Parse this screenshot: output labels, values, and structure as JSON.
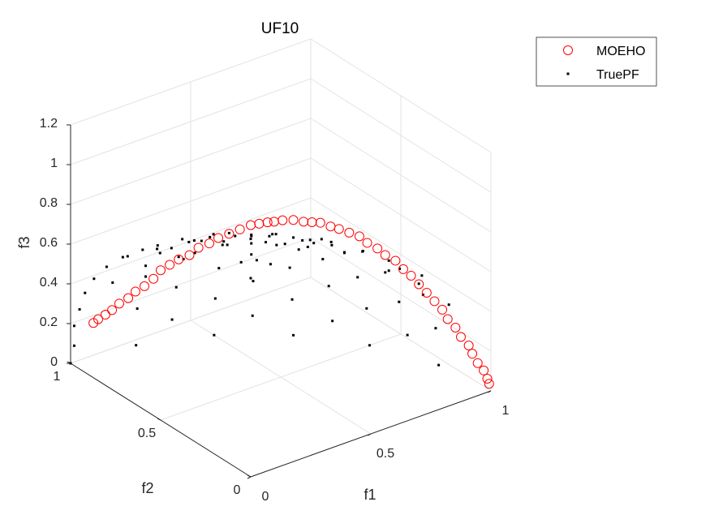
{
  "chart_data": {
    "type": "scatter",
    "title": "UF10",
    "xlabel": "f1",
    "ylabel": "f2",
    "zlabel": "f3",
    "xlim": [
      0,
      1
    ],
    "ylim": [
      0,
      1
    ],
    "zlim": [
      0,
      1.2
    ],
    "xticks": [
      "0",
      "0.5",
      "1"
    ],
    "yticks": [
      "0",
      "0.5",
      "1"
    ],
    "zticks": [
      "0",
      "0.2",
      "0.4",
      "0.6",
      "0.8",
      "1",
      "1.2"
    ],
    "grid": true,
    "legend": "top-right",
    "series": [
      {
        "name": "MOEHO",
        "marker": "circle-open",
        "color": "#ff0000",
        "points": [
          [
            0.08,
            0.98,
            0.18
          ],
          [
            0.1,
            0.98,
            0.19
          ],
          [
            0.13,
            0.98,
            0.2
          ],
          [
            0.15,
            0.97,
            0.22
          ],
          [
            0.18,
            0.97,
            0.24
          ],
          [
            0.21,
            0.96,
            0.26
          ],
          [
            0.24,
            0.96,
            0.28
          ],
          [
            0.27,
            0.95,
            0.3
          ],
          [
            0.3,
            0.94,
            0.33
          ],
          [
            0.33,
            0.94,
            0.36
          ],
          [
            0.36,
            0.93,
            0.38
          ],
          [
            0.39,
            0.92,
            0.4
          ],
          [
            0.42,
            0.9,
            0.42
          ],
          [
            0.45,
            0.89,
            0.45
          ],
          [
            0.48,
            0.87,
            0.47
          ],
          [
            0.51,
            0.86,
            0.49
          ],
          [
            0.54,
            0.84,
            0.51
          ],
          [
            0.57,
            0.82,
            0.53
          ],
          [
            0.6,
            0.8,
            0.55
          ],
          [
            0.62,
            0.78,
            0.56
          ],
          [
            0.64,
            0.76,
            0.57
          ],
          [
            0.66,
            0.75,
            0.57
          ],
          [
            0.68,
            0.73,
            0.58
          ],
          [
            0.71,
            0.71,
            0.58
          ],
          [
            0.73,
            0.68,
            0.58
          ],
          [
            0.75,
            0.66,
            0.58
          ],
          [
            0.77,
            0.64,
            0.58
          ],
          [
            0.79,
            0.61,
            0.57
          ],
          [
            0.81,
            0.59,
            0.56
          ],
          [
            0.83,
            0.56,
            0.55
          ],
          [
            0.85,
            0.53,
            0.54
          ],
          [
            0.86,
            0.5,
            0.52
          ],
          [
            0.88,
            0.47,
            0.5
          ],
          [
            0.89,
            0.44,
            0.48
          ],
          [
            0.91,
            0.41,
            0.46
          ],
          [
            0.92,
            0.38,
            0.43
          ],
          [
            0.93,
            0.35,
            0.41
          ],
          [
            0.94,
            0.32,
            0.38
          ],
          [
            0.95,
            0.29,
            0.35
          ],
          [
            0.96,
            0.26,
            0.32
          ],
          [
            0.97,
            0.23,
            0.29
          ],
          [
            0.97,
            0.2,
            0.26
          ],
          [
            0.98,
            0.17,
            0.23
          ],
          [
            0.98,
            0.14,
            0.2
          ],
          [
            0.99,
            0.11,
            0.17
          ],
          [
            0.99,
            0.09,
            0.14
          ],
          [
            0.99,
            0.06,
            0.11
          ],
          [
            1.0,
            0.04,
            0.08
          ],
          [
            1.0,
            0.02,
            0.05
          ],
          [
            1.0,
            0.01,
            0.03
          ]
        ]
      },
      {
        "name": "TruePF",
        "marker": "dot",
        "color": "#000000",
        "points": [
          [
            0.0,
            1.0,
            0.0
          ],
          [
            0.25,
            0.97,
            0.0
          ],
          [
            0.5,
            0.87,
            0.0
          ],
          [
            0.71,
            0.71,
            0.0
          ],
          [
            0.87,
            0.5,
            0.0
          ],
          [
            0.97,
            0.25,
            0.0
          ],
          [
            0.0,
            0.98,
            0.2
          ],
          [
            0.24,
            0.95,
            0.2
          ],
          [
            0.49,
            0.85,
            0.2
          ],
          [
            0.69,
            0.69,
            0.2
          ],
          [
            0.85,
            0.49,
            0.2
          ],
          [
            0.95,
            0.24,
            0.2
          ],
          [
            0.0,
            0.92,
            0.4
          ],
          [
            0.23,
            0.89,
            0.4
          ],
          [
            0.46,
            0.79,
            0.4
          ],
          [
            0.65,
            0.65,
            0.4
          ],
          [
            0.79,
            0.46,
            0.4
          ],
          [
            0.89,
            0.23,
            0.4
          ],
          [
            0.0,
            0.8,
            0.6
          ],
          [
            0.2,
            0.77,
            0.6
          ],
          [
            0.4,
            0.69,
            0.6
          ],
          [
            0.57,
            0.57,
            0.6
          ],
          [
            0.69,
            0.4,
            0.6
          ],
          [
            0.77,
            0.2,
            0.6
          ],
          [
            0.0,
            0.6,
            0.8
          ],
          [
            0.15,
            0.58,
            0.8
          ],
          [
            0.3,
            0.52,
            0.8
          ],
          [
            0.42,
            0.42,
            0.8
          ],
          [
            0.52,
            0.3,
            0.8
          ],
          [
            0.58,
            0.15,
            0.8
          ],
          [
            0.0,
            0.44,
            0.9
          ],
          [
            0.11,
            0.42,
            0.9
          ],
          [
            0.22,
            0.38,
            0.9
          ],
          [
            0.31,
            0.31,
            0.9
          ],
          [
            0.38,
            0.22,
            0.9
          ],
          [
            0.0,
            0.98,
            0.1
          ],
          [
            0.37,
            0.93,
            0.1
          ],
          [
            0.6,
            0.79,
            0.1
          ],
          [
            0.79,
            0.6,
            0.1
          ],
          [
            0.93,
            0.37,
            0.1
          ],
          [
            0.0,
            0.95,
            0.3
          ],
          [
            0.35,
            0.88,
            0.3
          ],
          [
            0.58,
            0.76,
            0.3
          ],
          [
            0.76,
            0.58,
            0.3
          ],
          [
            0.88,
            0.35,
            0.3
          ],
          [
            0.0,
            0.87,
            0.5
          ],
          [
            0.32,
            0.8,
            0.5
          ],
          [
            0.52,
            0.69,
            0.5
          ],
          [
            0.69,
            0.52,
            0.5
          ],
          [
            0.8,
            0.32,
            0.5
          ],
          [
            0.0,
            0.71,
            0.7
          ],
          [
            0.26,
            0.66,
            0.7
          ],
          [
            0.43,
            0.57,
            0.7
          ],
          [
            0.57,
            0.43,
            0.7
          ],
          [
            0.66,
            0.26,
            0.7
          ],
          [
            0.0,
            0.52,
            0.85
          ],
          [
            0.19,
            0.48,
            0.85
          ],
          [
            0.31,
            0.41,
            0.85
          ],
          [
            0.41,
            0.31,
            0.85
          ],
          [
            0.48,
            0.19,
            0.85
          ],
          [
            0.0,
            0.31,
            0.95
          ],
          [
            0.12,
            0.29,
            0.95
          ],
          [
            0.19,
            0.25,
            0.95
          ],
          [
            0.25,
            0.19,
            0.95
          ],
          [
            0.29,
            0.12,
            0.95
          ],
          [
            0.0,
            0.0,
            1.0
          ],
          [
            0.1,
            0.1,
            0.99
          ],
          [
            0.12,
            0.05,
            0.99
          ],
          [
            0.05,
            0.12,
            0.99
          ],
          [
            0.15,
            0.35,
            0.92
          ],
          [
            0.35,
            0.15,
            0.92
          ],
          [
            0.22,
            0.5,
            0.84
          ],
          [
            0.5,
            0.22,
            0.84
          ],
          [
            0.1,
            0.65,
            0.75
          ],
          [
            0.65,
            0.1,
            0.75
          ],
          [
            0.3,
            0.8,
            0.52
          ],
          [
            0.8,
            0.3,
            0.52
          ],
          [
            0.45,
            0.6,
            0.66
          ],
          [
            0.6,
            0.45,
            0.66
          ],
          [
            0.1,
            0.9,
            0.42
          ],
          [
            0.9,
            0.1,
            0.42
          ],
          [
            0.2,
            0.85,
            0.49
          ],
          [
            0.85,
            0.2,
            0.49
          ],
          [
            0.36,
            0.36,
            0.86
          ],
          [
            0.25,
            0.25,
            0.93
          ],
          [
            0.08,
            0.45,
            0.89
          ],
          [
            0.45,
            0.08,
            0.89
          ],
          [
            0.05,
            0.75,
            0.66
          ],
          [
            0.75,
            0.05,
            0.66
          ]
        ]
      }
    ]
  }
}
